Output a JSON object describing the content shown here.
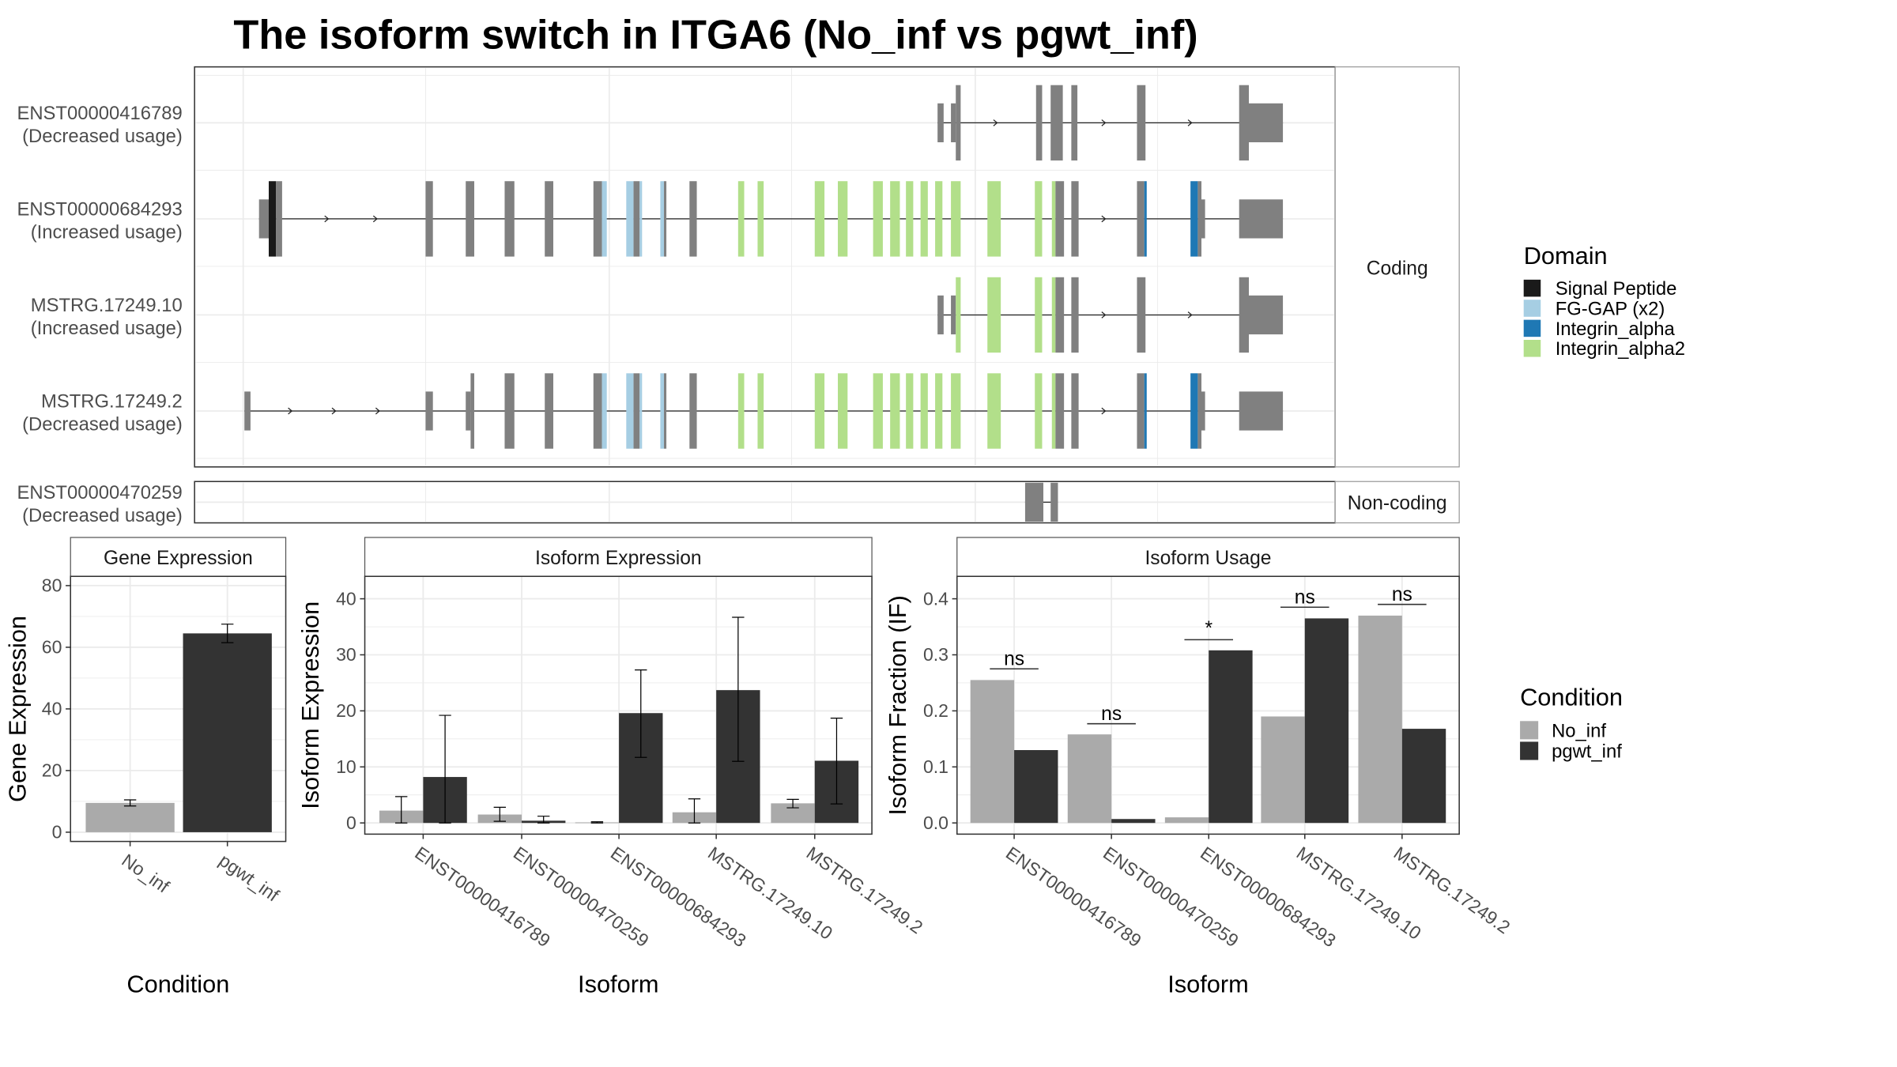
{
  "title": "The isoform switch in ITGA6 (No_inf vs pgwt_inf)",
  "transcripts": {
    "coding_strip": "Coding",
    "noncoding_strip": "Non-coding",
    "rows": [
      {
        "id": "ENST00000416789",
        "usage": "(Decreased usage)"
      },
      {
        "id": "ENST00000684293",
        "usage": "(Increased usage)"
      },
      {
        "id": "MSTRG.17249.10",
        "usage": "(Increased usage)"
      },
      {
        "id": "MSTRG.17249.2",
        "usage": "(Decreased usage)"
      },
      {
        "id": "ENST00000470259",
        "usage": "(Decreased usage)"
      }
    ]
  },
  "domain_legend": {
    "title": "Domain",
    "items": [
      {
        "label": "Signal Peptide",
        "color": "#1a1a1a"
      },
      {
        "label": "FG-GAP (x2)",
        "color": "#a6cee3"
      },
      {
        "label": "Integrin_alpha",
        "color": "#1f78b4"
      },
      {
        "label": "Integrin_alpha2",
        "color": "#b2df8a"
      }
    ],
    "exon_color": "#808080"
  },
  "condition_legend": {
    "title": "Condition",
    "items": [
      {
        "label": "No_inf",
        "color": "#aaaaaa"
      },
      {
        "label": "pgwt_inf",
        "color": "#333333"
      }
    ]
  },
  "chart_data": [
    {
      "type": "bar",
      "title": "Gene Expression",
      "xlabel": "Condition",
      "ylabel": "Gene Expression",
      "categories": [
        "No_inf",
        "pgwt_inf"
      ],
      "values": [
        9.5,
        64.5
      ],
      "error_low": [
        8.5,
        61.5
      ],
      "error_high": [
        10.5,
        67.5
      ],
      "yticks": [
        0,
        20,
        40,
        60,
        80
      ],
      "ylim": [
        -3,
        83
      ],
      "grid": true
    },
    {
      "type": "bar",
      "title": "Isoform Expression",
      "xlabel": "Isoform",
      "ylabel": "Isoform Expression",
      "categories": [
        "ENST00000416789",
        "ENST00000470259",
        "ENST00000684293",
        "MSTRG.17249.10",
        "MSTRG.17249.2"
      ],
      "series": [
        {
          "name": "No_inf",
          "values": [
            2.2,
            1.5,
            0.1,
            1.9,
            3.5
          ],
          "error_low": [
            0,
            0.3,
            0,
            0,
            2.7
          ],
          "error_high": [
            4.7,
            2.8,
            0.2,
            4.3,
            4.2
          ]
        },
        {
          "name": "pgwt_inf",
          "values": [
            8.2,
            0.4,
            19.6,
            23.7,
            11.1
          ],
          "error_low": [
            0,
            0,
            11.7,
            11.0,
            3.4
          ],
          "error_high": [
            19.2,
            1.2,
            27.3,
            36.7,
            18.7
          ]
        }
      ],
      "yticks": [
        0,
        10,
        20,
        30,
        40
      ],
      "ylim": [
        -2,
        44
      ],
      "grid": true
    },
    {
      "type": "bar",
      "title": "Isoform Usage",
      "xlabel": "Isoform",
      "ylabel": "Isoform Fraction (IF)",
      "categories": [
        "ENST00000416789",
        "ENST00000470259",
        "ENST00000684293",
        "MSTRG.17249.10",
        "MSTRG.17249.2"
      ],
      "series": [
        {
          "name": "No_inf",
          "values": [
            0.255,
            0.158,
            0.01,
            0.19,
            0.37
          ]
        },
        {
          "name": "pgwt_inf",
          "values": [
            0.13,
            0.007,
            0.308,
            0.365,
            0.168
          ]
        }
      ],
      "significance": [
        {
          "label": "ns",
          "y": 0.275
        },
        {
          "label": "ns",
          "y": 0.177
        },
        {
          "label": "*",
          "y": 0.327
        },
        {
          "label": "ns",
          "y": 0.385
        },
        {
          "label": "ns",
          "y": 0.39
        }
      ],
      "yticks": [
        0.0,
        0.1,
        0.2,
        0.3,
        0.4
      ],
      "ytick_labels": [
        "0.0",
        "0.1",
        "0.2",
        "0.3",
        "0.4"
      ],
      "ylim": [
        -0.02,
        0.44
      ],
      "grid": true
    }
  ]
}
